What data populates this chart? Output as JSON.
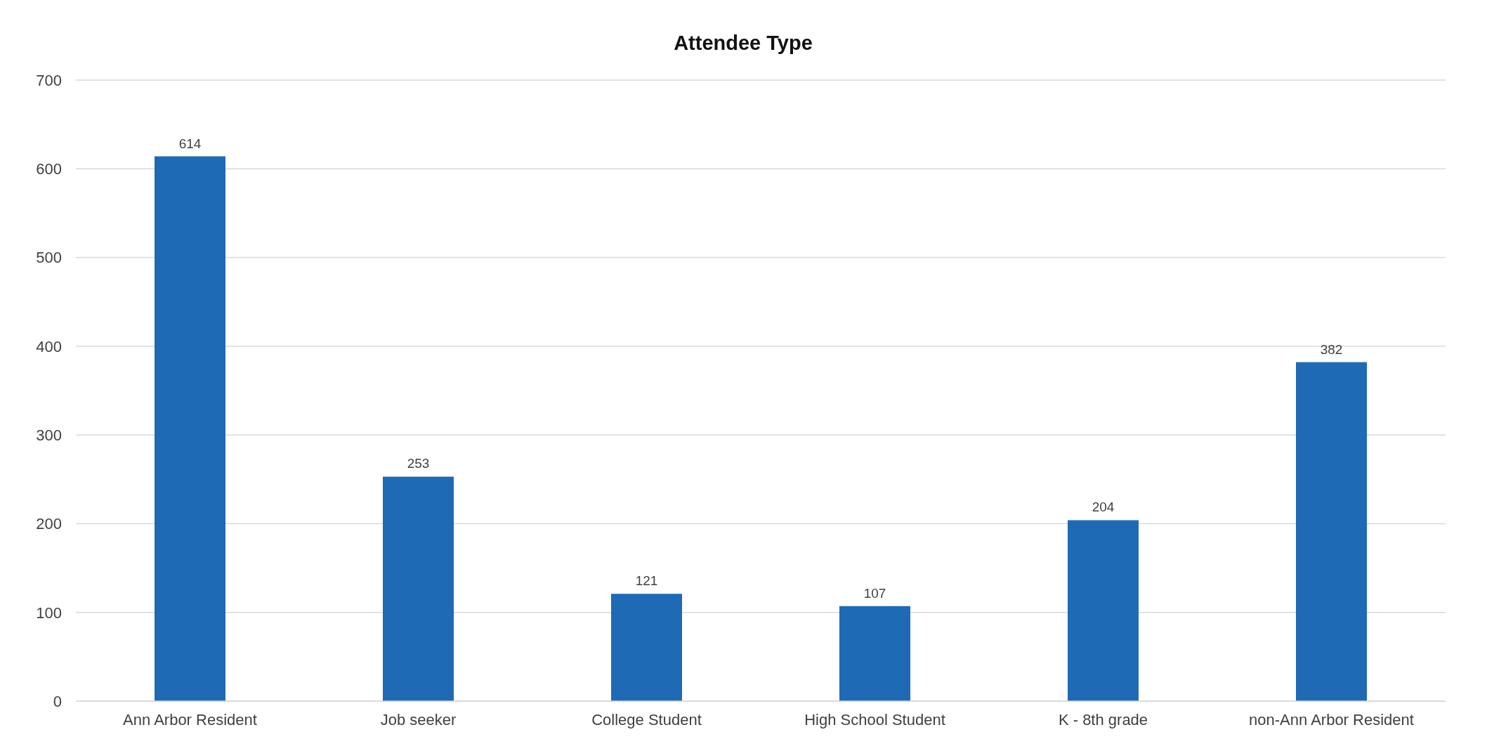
{
  "chart_data": {
    "type": "bar",
    "title": "Attendee Type",
    "categories": [
      "Ann Arbor Resident",
      "Job seeker",
      "College Student",
      "High School Student",
      "K - 8th grade",
      "non-Ann Arbor Resident"
    ],
    "values": [
      614,
      253,
      121,
      107,
      204,
      382
    ],
    "color": "#1f6ab5",
    "ylim": [
      0,
      700
    ],
    "yticks": [
      0,
      100,
      200,
      300,
      400,
      500,
      600,
      700
    ],
    "grid": "y",
    "data_labels": true
  }
}
